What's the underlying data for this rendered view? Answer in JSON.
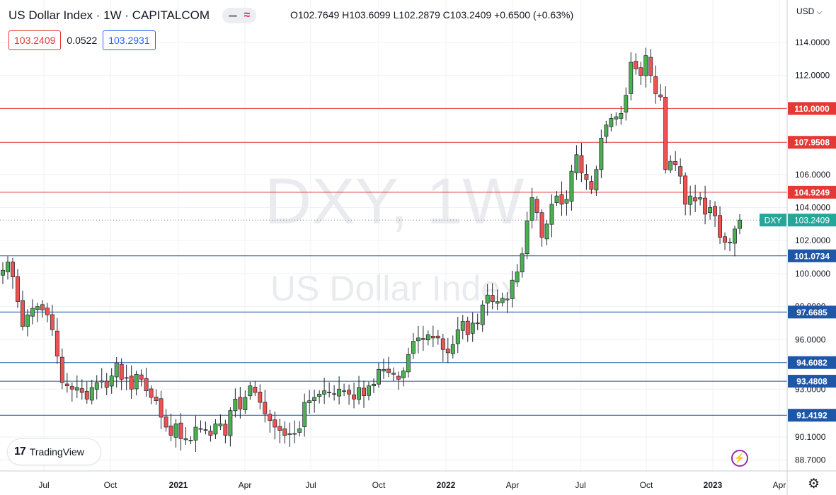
{
  "header": {
    "title": "US Dollar Index · 1W · CAPITALCOM",
    "ohlc": "O102.7649  H103.6099  L102.2879  C103.2409  +0.6500 (+0.63%)"
  },
  "price_boxes": {
    "bid": "103.2409",
    "spread": "0.0522",
    "ask": "103.2931"
  },
  "currency_selector": "USD",
  "watermark": {
    "symbol": "DXY, 1W",
    "name": "US Dollar Index"
  },
  "logo_text": "TradingView",
  "colors": {
    "up": "#26a69a",
    "down": "#ef5350",
    "up_body": "#4caf50",
    "resistance": "#e53935",
    "support": "#1e56a8",
    "grid": "#eef0f3",
    "axis_text": "#131722"
  },
  "chart_data": {
    "type": "candlestick",
    "title": "US Dollar Index · 1W · CAPITALCOM",
    "timeframe": "1W",
    "ylim": [
      88.3,
      116.5
    ],
    "y_ticks": [
      "114.0000",
      "112.0000",
      "106.0000",
      "104.0000",
      "102.0000",
      "100.0000",
      "98.0000",
      "96.0000",
      "93.0000",
      "90.1000",
      "88.7000"
    ],
    "x_ticks": [
      "Jul",
      "Oct",
      "2021",
      "Apr",
      "Jul",
      "Oct",
      "2022",
      "Apr",
      "Jul",
      "Oct",
      "2023",
      "Apr"
    ],
    "x_tick_dates": [
      "2020-07",
      "2020-10",
      "2021-01",
      "2021-04",
      "2021-07",
      "2021-10",
      "2022-01",
      "2022-04",
      "2022-07",
      "2022-10",
      "2023-01",
      "2023-04"
    ],
    "grid": true,
    "horizontal_lines": [
      {
        "value": 110.0,
        "label": "110.0000",
        "kind": "resistance"
      },
      {
        "value": 107.9508,
        "label": "107.9508",
        "kind": "resistance"
      },
      {
        "value": 104.9249,
        "label": "104.9249",
        "kind": "resistance"
      },
      {
        "value": 101.0734,
        "label": "101.0734",
        "kind": "support"
      },
      {
        "value": 97.6685,
        "label": "97.6685",
        "kind": "support"
      },
      {
        "value": 94.6082,
        "label": "94.6082",
        "kind": "support"
      },
      {
        "value": 93.4808,
        "label": "93.4808",
        "kind": "support"
      },
      {
        "value": 91.4192,
        "label": "91.4192",
        "kind": "support"
      }
    ],
    "last_price": {
      "symbol": "DXY",
      "value": 103.2409,
      "label": "103.2409"
    },
    "ohlc_summary": {
      "open": 102.7649,
      "high": 103.6099,
      "low": 102.2879,
      "close": 103.2409,
      "change": 0.65,
      "change_pct": 0.63
    },
    "close_series": [
      100.2,
      100.7,
      99.8,
      98.3,
      96.8,
      97.5,
      97.9,
      98.0,
      97.8,
      97.5,
      96.6,
      95.0,
      93.4,
      93.2,
      93.0,
      93.1,
      92.8,
      92.4,
      93.1,
      93.4,
      93.5,
      93.1,
      93.8,
      94.6,
      93.6,
      93.7,
      93.0,
      93.9,
      93.6,
      92.9,
      92.5,
      92.3,
      91.3,
      90.7,
      90.2,
      90.9,
      90.0,
      90.0,
      89.9,
      90.7,
      90.6,
      90.5,
      90.2,
      90.9,
      90.9,
      90.2,
      91.7,
      92.4,
      91.8,
      92.5,
      93.2,
      92.8,
      92.2,
      91.5,
      91.1,
      90.7,
      90.5,
      90.2,
      90.3,
      90.3,
      90.6,
      92.2,
      92.3,
      92.5,
      92.7,
      92.9,
      92.8,
      92.7,
      93.0,
      92.9,
      92.7,
      92.4,
      93.1,
      92.6,
      93.2,
      93.3,
      94.2,
      94.2,
      94.0,
      93.9,
      93.6,
      94.1,
      95.1,
      95.9,
      96.1,
      96.0,
      96.3,
      96.1,
      96.1,
      95.4,
      95.2,
      95.7,
      96.6,
      97.1,
      96.3,
      97.0,
      97.0,
      98.1,
      98.7,
      98.3,
      98.3,
      98.5,
      98.4,
      99.6,
      100.1,
      101.2,
      103.2,
      104.6,
      103.7,
      102.2,
      103.0,
      104.2,
      104.7,
      104.2,
      104.5,
      106.2,
      107.2,
      106.1,
      105.7,
      105.1,
      106.3,
      108.2,
      109.0,
      109.4,
      109.5,
      109.7,
      110.8,
      112.8,
      112.4,
      112.0,
      113.2,
      112.0,
      110.9,
      110.7,
      106.3,
      106.8,
      106.6,
      105.9,
      104.2,
      104.7,
      104.4,
      104.6,
      103.6,
      104.0,
      103.5,
      102.2,
      101.9,
      101.9,
      102.7,
      103.2409
    ]
  }
}
